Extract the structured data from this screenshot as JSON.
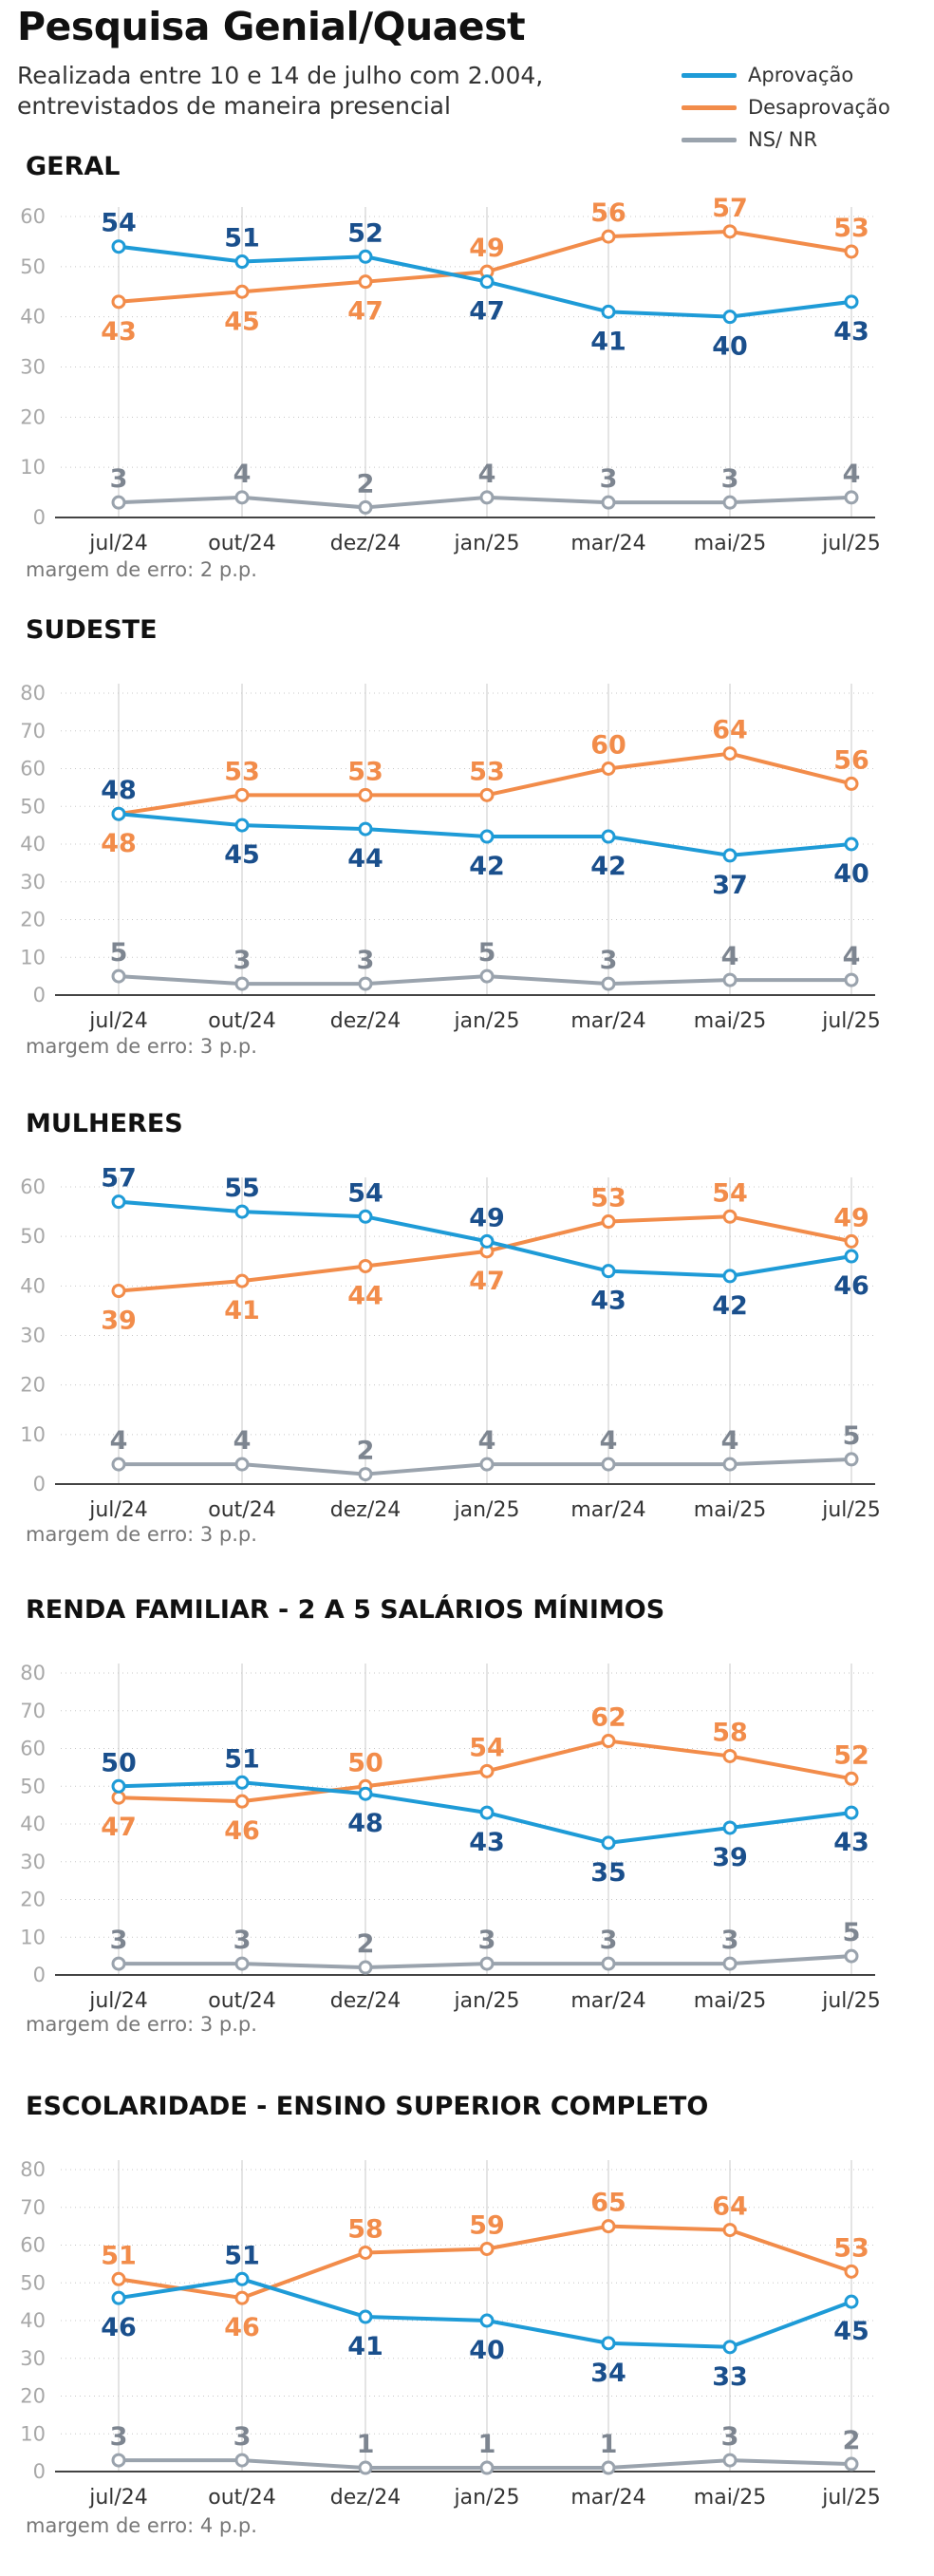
{
  "header": {
    "title": "Pesquisa Genial/Quaest",
    "subtitle": "Realizada entre 10 e 14 de julho com 2.004, entrevistados de maneira presencial"
  },
  "colors": {
    "aprovacao": "#1e9bd7",
    "aprovacao_label": "#1a4f8c",
    "desaprovacao": "#f28c4a",
    "desaprovacao_label": "#f28c4a",
    "nsnr": "#9aa3ad",
    "nsnr_label": "#7d8590"
  },
  "legend": [
    {
      "key": "aprovacao",
      "label": "Aprovação"
    },
    {
      "key": "desaprovacao",
      "label": "Desaprovação"
    },
    {
      "key": "nsnr",
      "label": "NS/ NR"
    }
  ],
  "chart_data": [
    {
      "type": "line",
      "title": "GERAL",
      "margin_note": "margem de erro: 2 p.p.",
      "categories": [
        "jul/24",
        "out/24",
        "dez/24",
        "jan/25",
        "mar/24",
        "mai/25",
        "jul/25"
      ],
      "ylim": [
        0,
        60
      ],
      "yticks": [
        0,
        10,
        20,
        30,
        40,
        50,
        60
      ],
      "grid": true,
      "series": [
        {
          "name": "Aprovação",
          "key": "aprovacao",
          "values": [
            54,
            51,
            52,
            47,
            41,
            40,
            43
          ],
          "label_pos": [
            "above",
            "above",
            "above",
            "below",
            "below",
            "below",
            "below"
          ]
        },
        {
          "name": "Desaprovação",
          "key": "desaprovacao",
          "values": [
            43,
            45,
            47,
            49,
            56,
            57,
            53
          ],
          "label_pos": [
            "below",
            "below",
            "below",
            "above",
            "above",
            "above",
            "above"
          ]
        },
        {
          "name": "NS/ NR",
          "key": "nsnr",
          "values": [
            3,
            4,
            2,
            4,
            3,
            3,
            4
          ],
          "label_pos": [
            "above",
            "above",
            "above",
            "above",
            "above",
            "above",
            "above"
          ]
        }
      ]
    },
    {
      "type": "line",
      "title": "SUDESTE",
      "margin_note": "margem de erro: 3 p.p.",
      "categories": [
        "jul/24",
        "out/24",
        "dez/24",
        "jan/25",
        "mar/24",
        "mai/25",
        "jul/25"
      ],
      "ylim": [
        0,
        80
      ],
      "yticks": [
        0,
        10,
        20,
        30,
        40,
        50,
        60,
        70,
        80
      ],
      "grid": true,
      "series": [
        {
          "name": "Aprovação",
          "key": "aprovacao",
          "values": [
            48,
            45,
            44,
            42,
            42,
            37,
            40
          ],
          "label_pos": [
            "above",
            "below",
            "below",
            "below",
            "below",
            "below",
            "below"
          ]
        },
        {
          "name": "Desaprovação",
          "key": "desaprovacao",
          "values": [
            48,
            53,
            53,
            53,
            60,
            64,
            56
          ],
          "label_pos": [
            "below",
            "above",
            "above",
            "above",
            "above",
            "above",
            "above"
          ]
        },
        {
          "name": "NS/ NR",
          "key": "nsnr",
          "values": [
            5,
            3,
            3,
            5,
            3,
            4,
            4
          ],
          "label_pos": [
            "above",
            "above",
            "above",
            "above",
            "above",
            "above",
            "above"
          ]
        }
      ]
    },
    {
      "type": "line",
      "title": "MULHERES",
      "margin_note": "margem de erro: 3 p.p.",
      "categories": [
        "jul/24",
        "out/24",
        "dez/24",
        "jan/25",
        "mar/24",
        "mai/25",
        "jul/25"
      ],
      "ylim": [
        0,
        60
      ],
      "yticks": [
        0,
        10,
        20,
        30,
        40,
        50,
        60
      ],
      "grid": true,
      "series": [
        {
          "name": "Aprovação",
          "key": "aprovacao",
          "values": [
            57,
            55,
            54,
            49,
            43,
            42,
            46
          ],
          "label_pos": [
            "above",
            "above",
            "above",
            "above",
            "below",
            "below",
            "below"
          ]
        },
        {
          "name": "Desaprovação",
          "key": "desaprovacao",
          "values": [
            39,
            41,
            44,
            47,
            53,
            54,
            49
          ],
          "label_pos": [
            "below",
            "below",
            "below",
            "below",
            "above",
            "above",
            "above"
          ]
        },
        {
          "name": "NS/ NR",
          "key": "nsnr",
          "values": [
            4,
            4,
            2,
            4,
            4,
            4,
            5
          ],
          "label_pos": [
            "above",
            "above",
            "above",
            "above",
            "above",
            "above",
            "above"
          ]
        }
      ]
    },
    {
      "type": "line",
      "title": "RENDA FAMILIAR - 2 A 5 SALÁRIOS MÍNIMOS",
      "margin_note": "margem de erro: 3 p.p.",
      "categories": [
        "jul/24",
        "out/24",
        "dez/24",
        "jan/25",
        "mar/24",
        "mai/25",
        "jul/25"
      ],
      "ylim": [
        0,
        80
      ],
      "yticks": [
        0,
        10,
        20,
        30,
        40,
        50,
        60,
        70,
        80
      ],
      "grid": true,
      "series": [
        {
          "name": "Aprovação",
          "key": "aprovacao",
          "values": [
            50,
            51,
            48,
            43,
            35,
            39,
            43
          ],
          "label_pos": [
            "above",
            "above",
            "below",
            "below",
            "below",
            "below",
            "below"
          ]
        },
        {
          "name": "Desaprovação",
          "key": "desaprovacao",
          "values": [
            47,
            46,
            50,
            54,
            62,
            58,
            52
          ],
          "label_pos": [
            "below",
            "below",
            "above",
            "above",
            "above",
            "above",
            "above"
          ]
        },
        {
          "name": "NS/ NR",
          "key": "nsnr",
          "values": [
            3,
            3,
            2,
            3,
            3,
            3,
            5
          ],
          "label_pos": [
            "above",
            "above",
            "above",
            "above",
            "above",
            "above",
            "above"
          ]
        }
      ]
    },
    {
      "type": "line",
      "title": "ESCOLARIDADE - ENSINO SUPERIOR COMPLETO",
      "margin_note": "margem de erro: 4 p.p.",
      "categories": [
        "jul/24",
        "out/24",
        "dez/24",
        "jan/25",
        "mar/24",
        "mai/25",
        "jul/25"
      ],
      "ylim": [
        0,
        80
      ],
      "yticks": [
        0,
        10,
        20,
        30,
        40,
        50,
        60,
        70,
        80
      ],
      "grid": true,
      "series": [
        {
          "name": "Aprovação",
          "key": "aprovacao",
          "values": [
            46,
            51,
            41,
            40,
            34,
            33,
            45
          ],
          "label_pos": [
            "below",
            "above",
            "below",
            "below",
            "below",
            "below",
            "below"
          ]
        },
        {
          "name": "Desaprovação",
          "key": "desaprovacao",
          "values": [
            51,
            46,
            58,
            59,
            65,
            64,
            53
          ],
          "label_pos": [
            "above",
            "below",
            "above",
            "above",
            "above",
            "above",
            "above"
          ]
        },
        {
          "name": "NS/ NR",
          "key": "nsnr",
          "values": [
            3,
            3,
            1,
            1,
            1,
            3,
            2
          ],
          "label_pos": [
            "above",
            "above",
            "above",
            "above",
            "above",
            "above",
            "above"
          ]
        }
      ]
    }
  ]
}
